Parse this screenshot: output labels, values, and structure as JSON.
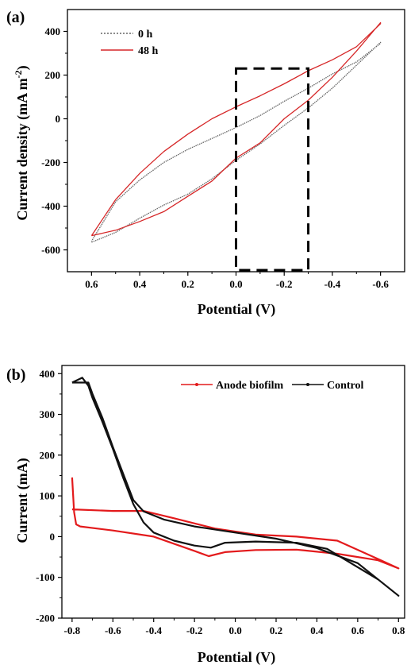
{
  "chart_data": [
    {
      "type": "line",
      "panel_label": "(a)",
      "xlabel": "Potential (V)",
      "ylabel": "Current density (mA m",
      "ylabel_sup": "-2",
      "ylabel_close": ")",
      "xlim": [
        0.7,
        -0.7
      ],
      "ylim": [
        -700,
        500
      ],
      "xticks": [
        0.6,
        0.4,
        0.2,
        0.0,
        -0.2,
        -0.4,
        -0.6
      ],
      "xtick_labels": [
        "0.6",
        "0.4",
        "0.2",
        "0.0",
        "-0.2",
        "-0.4",
        "-0.6"
      ],
      "yticks": [
        -600,
        -400,
        -200,
        0,
        200,
        400
      ],
      "ytick_labels": [
        "-600",
        "-400",
        "-200",
        "0",
        "200",
        "400"
      ],
      "legend": "top-left",
      "grid": false,
      "annotation": {
        "type": "dashed-rectangle",
        "x": [
          0.0,
          -0.3
        ],
        "y": [
          -700,
          230
        ]
      },
      "series": [
        {
          "name": "0 h",
          "color": "#666666",
          "style": "dotted",
          "x": [
            0.6,
            0.5,
            0.4,
            0.3,
            0.2,
            0.1,
            0.0,
            -0.1,
            -0.2,
            -0.3,
            -0.4,
            -0.5,
            -0.6,
            -0.6,
            -0.5,
            -0.4,
            -0.3,
            -0.2,
            -0.1,
            0.0,
            0.1,
            0.2,
            0.3,
            0.4,
            0.5,
            0.6
          ],
          "y": [
            -565,
            -520,
            -455,
            -395,
            -345,
            -275,
            -190,
            -115,
            -30,
            50,
            140,
            245,
            350,
            345,
            260,
            205,
            140,
            80,
            15,
            -40,
            -90,
            -140,
            -200,
            -280,
            -380,
            -560
          ]
        },
        {
          "name": "48 h",
          "color": "#d62728",
          "style": "solid",
          "x": [
            0.6,
            0.5,
            0.4,
            0.3,
            0.2,
            0.1,
            0.0,
            -0.1,
            -0.2,
            -0.3,
            -0.4,
            -0.5,
            -0.6,
            -0.6,
            -0.5,
            -0.4,
            -0.3,
            -0.2,
            -0.1,
            0.0,
            0.1,
            0.2,
            0.3,
            0.4,
            0.5,
            0.6
          ],
          "y": [
            -535,
            -510,
            -470,
            -425,
            -355,
            -285,
            -180,
            -110,
            0,
            85,
            190,
            310,
            440,
            435,
            330,
            270,
            220,
            160,
            105,
            55,
            0,
            -70,
            -150,
            -250,
            -370,
            -535
          ]
        }
      ]
    },
    {
      "type": "line",
      "panel_label": "(b)",
      "xlabel": "Potential (V)",
      "ylabel": "Current (mA)",
      "xlim": [
        -0.85,
        0.83
      ],
      "ylim": [
        -200,
        420
      ],
      "xticks": [
        -0.8,
        -0.6,
        -0.4,
        -0.2,
        0.0,
        0.2,
        0.4,
        0.6,
        0.8
      ],
      "xtick_labels": [
        "-0.8",
        "-0.6",
        "-0.4",
        "-0.2",
        "0.0",
        "0.2",
        "0.4",
        "0.6",
        "0.8"
      ],
      "yticks": [
        -200,
        -100,
        0,
        100,
        200,
        300,
        400
      ],
      "ytick_labels": [
        "-200",
        "-100",
        "0",
        "100",
        "200",
        "300",
        "400"
      ],
      "legend": "top-right",
      "grid": false,
      "series": [
        {
          "name": "Anode biofilm",
          "color": "#e31a1c",
          "x": [
            -0.8,
            -0.79,
            -0.78,
            -0.76,
            -0.6,
            -0.4,
            -0.2,
            -0.13,
            -0.05,
            0.1,
            0.3,
            0.5,
            0.7,
            0.8,
            0.7,
            0.5,
            0.3,
            0.1,
            -0.1,
            -0.3,
            -0.45,
            -0.6,
            -0.8
          ],
          "y": [
            145,
            60,
            30,
            25,
            15,
            0,
            -35,
            -48,
            -38,
            -33,
            -32,
            -42,
            -58,
            -78,
            -55,
            -10,
            0,
            5,
            20,
            45,
            63,
            63,
            67
          ]
        },
        {
          "name": "Control",
          "color": "#111111",
          "x": [
            -0.8,
            -0.75,
            -0.72,
            -0.7,
            -0.65,
            -0.6,
            -0.55,
            -0.5,
            -0.45,
            -0.4,
            -0.3,
            -0.2,
            -0.12,
            -0.05,
            0.1,
            0.3,
            0.45,
            0.6,
            0.7,
            0.8,
            0.6,
            0.4,
            0.2,
            0.0,
            -0.2,
            -0.35,
            -0.45,
            -0.5,
            -0.55,
            -0.6,
            -0.65,
            -0.7,
            -0.72,
            -0.8
          ],
          "y": [
            378,
            390,
            370,
            340,
            280,
            215,
            145,
            80,
            35,
            10,
            -10,
            -22,
            -27,
            -15,
            -12,
            -15,
            -30,
            -75,
            -105,
            -145,
            -65,
            -28,
            -5,
            10,
            25,
            42,
            62,
            90,
            155,
            220,
            290,
            350,
            378,
            378
          ]
        }
      ]
    }
  ]
}
